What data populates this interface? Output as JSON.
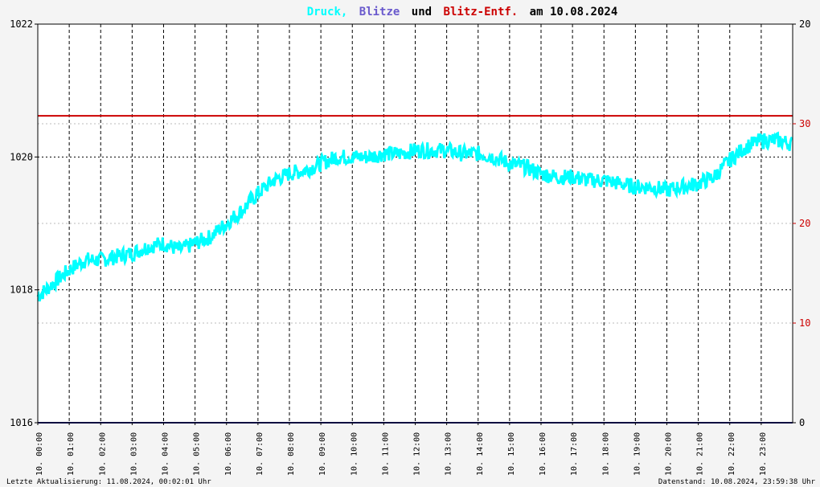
{
  "chart_data": {
    "type": "line",
    "title": {
      "druck": "Druck,",
      "blitze": "Blitze",
      "und": "und",
      "entf": "Blitz-Entf.",
      "am": "am 10.08.2024"
    },
    "colors": {
      "druck": "#00ffff",
      "blitze": "#6a5acd",
      "entf": "#cc0000",
      "text": "#000000",
      "plot_bg": "#ffffff"
    },
    "left_axis": {
      "ticks": [
        "1022",
        "1020",
        "1018",
        "1016"
      ],
      "ylim": [
        1016,
        1022
      ]
    },
    "right_axis_black": {
      "ticks": [
        "20",
        "0"
      ],
      "ylim": [
        0,
        20
      ]
    },
    "right_axis_red": {
      "ticks": [
        "30",
        "20",
        "10"
      ],
      "ylim": [
        0,
        40
      ]
    },
    "x_ticks": [
      "10. 00:00",
      "10. 01:00",
      "10. 02:00",
      "10. 03:00",
      "10. 04:00",
      "10. 05:00",
      "10. 06:00",
      "10. 07:00",
      "10. 08:00",
      "10. 09:00",
      "10. 10:00",
      "10. 11:00",
      "10. 12:00",
      "10. 13:00",
      "10. 14:00",
      "10. 15:00",
      "10. 16:00",
      "10. 17:00",
      "10. 18:00",
      "10. 19:00",
      "10. 20:00",
      "10. 21:00",
      "10. 22:00",
      "10. 23:00"
    ],
    "xlim_hours": [
      0,
      24
    ],
    "grid": true,
    "series": [
      {
        "name": "Druck,",
        "axis": "left",
        "x_hours": [
          0,
          0.5,
          1,
          1.5,
          2,
          2.5,
          3,
          3.5,
          4,
          4.5,
          5,
          5.5,
          6,
          6.5,
          7,
          7.5,
          8,
          8.5,
          9,
          9.5,
          10,
          10.5,
          11,
          11.5,
          12,
          12.5,
          13,
          13.5,
          14,
          14.5,
          15,
          15.5,
          16,
          16.5,
          17,
          17.5,
          18,
          18.5,
          19,
          19.5,
          20,
          20.5,
          21,
          21.5,
          22,
          22.5,
          23,
          23.5,
          23.98
        ],
        "values": [
          1017.9,
          1018.1,
          1018.3,
          1018.45,
          1018.45,
          1018.5,
          1018.55,
          1018.65,
          1018.7,
          1018.6,
          1018.7,
          1018.8,
          1019.0,
          1019.2,
          1019.45,
          1019.65,
          1019.75,
          1019.8,
          1019.9,
          1020.0,
          1020.0,
          1020.0,
          1020.05,
          1020.05,
          1020.1,
          1020.1,
          1020.1,
          1020.05,
          1020.05,
          1020.0,
          1019.9,
          1019.85,
          1019.75,
          1019.7,
          1019.7,
          1019.65,
          1019.65,
          1019.6,
          1019.55,
          1019.55,
          1019.5,
          1019.55,
          1019.6,
          1019.7,
          1019.95,
          1020.15,
          1020.25,
          1020.25,
          1020.2
        ],
        "noise": 0.12
      },
      {
        "name": "Blitz-Entf.",
        "axis": "right_red",
        "x_hours": [
          0,
          24
        ],
        "values": [
          30.8,
          30.8
        ]
      },
      {
        "name": "Blitze",
        "axis": "right_black",
        "x_hours": [
          0,
          24
        ],
        "values": [
          0,
          0
        ]
      }
    ]
  },
  "footer": {
    "left": "Letzte Aktualisierung: 11.08.2024, 00:02:01 Uhr",
    "right": "Datenstand: 10.08.2024, 23:59:38 Uhr"
  }
}
